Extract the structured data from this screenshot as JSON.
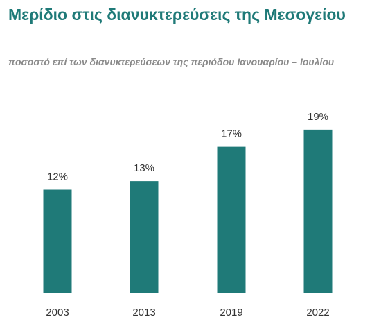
{
  "chart_data": {
    "type": "bar",
    "title": "Μερίδιο στις διανυκτερεύσεις της Μεσογείου",
    "subtitle": "ποσοστό επί των διανυκτερεύσεων της περιόδου Ιανουαρίου – Ιουλίου",
    "categories": [
      "2003",
      "2013",
      "2019",
      "2022"
    ],
    "values": [
      12,
      13,
      17,
      19
    ],
    "data_labels": [
      "12%",
      "13%",
      "17%",
      "19%"
    ],
    "ylim": [
      0,
      24
    ],
    "grid": false,
    "legend": "none",
    "bar_color": "#1f7a78",
    "xlabel": "",
    "ylabel": ""
  }
}
